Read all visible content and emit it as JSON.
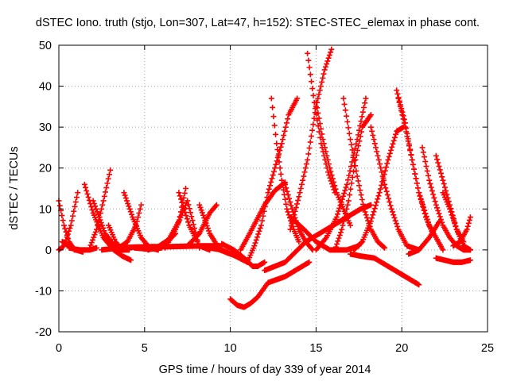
{
  "chart_data": {
    "type": "scatter",
    "title": "dSTEC Iono. truth (stjo, Lon=307, Lat=47, h=152): STEC-STEC_elemax in phase cont.",
    "xlabel": "GPS time / hours of day 339 of year 2014",
    "ylabel": "dSTEC  / TECUs",
    "xlim": [
      0,
      25
    ],
    "ylim": [
      -20,
      50
    ],
    "xticks": [
      "0",
      "5",
      "10",
      "15",
      "20",
      "25"
    ],
    "yticks": [
      "-20",
      "-10",
      "0",
      "10",
      "20",
      "30",
      "40",
      "50"
    ],
    "grid": true,
    "marker": "+",
    "color": "#ff0000",
    "series": [
      {
        "x": [
          0.0,
          0.3,
          0.6,
          0.9,
          1.2
        ],
        "y": [
          12,
          6,
          2,
          0,
          0
        ]
      },
      {
        "x": [
          0.0,
          0.3,
          0.7,
          1.1
        ],
        "y": [
          0,
          1,
          6,
          14
        ]
      },
      {
        "x": [
          0.2,
          0.6,
          1.0,
          1.4
        ],
        "y": [
          2,
          1,
          0,
          -0.5
        ]
      },
      {
        "x": [
          0.6,
          1.2,
          1.8,
          2.2
        ],
        "y": [
          0.5,
          0,
          0,
          0.5
        ]
      },
      {
        "x": [
          1.5,
          2.0,
          2.6,
          3.2,
          3.7,
          4.2
        ],
        "y": [
          16,
          9,
          3,
          0,
          -1.5,
          -2.5
        ]
      },
      {
        "x": [
          1.8,
          2.2,
          2.6,
          3.0
        ],
        "y": [
          0.5,
          5,
          12,
          19.5
        ]
      },
      {
        "x": [
          2.0,
          2.7,
          3.4,
          3.8
        ],
        "y": [
          12,
          4,
          0,
          0
        ]
      },
      {
        "x": [
          2.5,
          3.5,
          4.5,
          5.5,
          6.5,
          7.5,
          8.5,
          9.5
        ],
        "y": [
          0,
          0.5,
          0.7,
          0.8,
          0.8,
          0.9,
          1.0,
          1.0
        ]
      },
      {
        "x": [
          2.9,
          3.3,
          3.7,
          4.1
        ],
        "y": [
          6,
          2,
          0,
          0
        ]
      },
      {
        "x": [
          3.8,
          4.3,
          4.8,
          5.3,
          5.8
        ],
        "y": [
          14,
          8,
          3,
          0.5,
          0
        ]
      },
      {
        "x": [
          3.5,
          4.0,
          4.5,
          4.8
        ],
        "y": [
          0.5,
          2,
          6,
          11
        ]
      },
      {
        "x": [
          4.4,
          5.2,
          6.0,
          6.8
        ],
        "y": [
          0.5,
          0.2,
          0.5,
          4
        ]
      },
      {
        "x": [
          5.2,
          5.8,
          6.4,
          7.0,
          7.4
        ],
        "y": [
          0,
          0.8,
          2.5,
          7,
          15
        ]
      },
      {
        "x": [
          6.2,
          6.8,
          7.5,
          8.2
        ],
        "y": [
          0.5,
          5,
          12,
          0.5
        ]
      },
      {
        "x": [
          7.0,
          7.6,
          8.2,
          8.8
        ],
        "y": [
          14,
          6,
          1,
          0
        ]
      },
      {
        "x": [
          7.5,
          8.2,
          8.8,
          9.2
        ],
        "y": [
          1,
          4,
          9,
          11
        ]
      },
      {
        "x": [
          8.2,
          8.8,
          9.4,
          10.0,
          10.6
        ],
        "y": [
          11,
          4,
          0,
          -1,
          -1.5
        ]
      },
      {
        "x": [
          8.8,
          9.5,
          10.3,
          11.0
        ],
        "y": [
          0.5,
          0,
          -1.5,
          -3
        ]
      },
      {
        "x": [
          9.5,
          10.2,
          10.8,
          11.3,
          11.6,
          12.0
        ],
        "y": [
          1.5,
          0,
          -2,
          -4,
          -4,
          -3
        ]
      },
      {
        "x": [
          10.0,
          10.4,
          10.8,
          11.2,
          11.6,
          12.2,
          13.2,
          14.2,
          14.6
        ],
        "y": [
          -12,
          -13.5,
          -14,
          -13,
          -11.5,
          -8,
          -6.5,
          -4,
          -3
        ]
      },
      {
        "x": [
          11.0,
          11.4,
          11.8,
          12.2,
          12.6,
          13.0,
          13.4,
          13.9
        ],
        "y": [
          -3,
          1,
          6,
          14,
          20,
          26,
          33,
          37
        ]
      },
      {
        "x": [
          10.6,
          11.0,
          11.5,
          12.0,
          12.6,
          13.2
        ],
        "y": [
          0,
          3,
          7,
          11,
          14.5,
          16.5
        ]
      },
      {
        "x": [
          12.0,
          13.2,
          14.4,
          15.6,
          16.8,
          17.6,
          18.2
        ],
        "y": [
          -5,
          -3,
          2,
          5,
          8,
          10,
          11
        ]
      },
      {
        "x": [
          12.4,
          12.7,
          13.0,
          13.3,
          13.7,
          14.0
        ],
        "y": [
          37,
          26,
          17,
          10,
          5,
          2
        ]
      },
      {
        "x": [
          13.2,
          13.6,
          14.0,
          14.4,
          14.8
        ],
        "y": [
          16,
          10,
          5,
          2,
          0
        ]
      },
      {
        "x": [
          13.5,
          14.0,
          14.5,
          15.0,
          15.5,
          15.9
        ],
        "y": [
          5,
          13,
          22,
          35,
          44,
          49
        ]
      },
      {
        "x": [
          13.5,
          14.3,
          15.0,
          15.8,
          16.8,
          17.5
        ],
        "y": [
          8,
          5,
          2,
          0,
          0,
          1
        ]
      },
      {
        "x": [
          14.5,
          14.9,
          15.3,
          15.7,
          16.1
        ],
        "y": [
          48,
          36,
          26,
          19,
          14
        ]
      },
      {
        "x": [
          15.0,
          15.4,
          15.8,
          16.2,
          16.6,
          17.0
        ],
        "y": [
          36,
          27,
          20,
          14,
          10,
          6
        ]
      },
      {
        "x": [
          15.0,
          15.6,
          16.2,
          16.8,
          17.4,
          17.9
        ],
        "y": [
          0,
          3,
          8,
          16,
          27,
          37
        ]
      },
      {
        "x": [
          16.1,
          16.5,
          16.9,
          17.3,
          17.7,
          18.2
        ],
        "y": [
          0,
          5,
          12,
          22,
          30,
          33
        ]
      },
      {
        "x": [
          16.6,
          17.0,
          17.4,
          17.8,
          18.2,
          18.6,
          19.0
        ],
        "y": [
          37,
          27,
          18,
          10,
          5,
          2,
          0.5
        ]
      },
      {
        "x": [
          17.2,
          17.7,
          18.2,
          18.7,
          19.2,
          19.7,
          20.1
        ],
        "y": [
          0,
          2,
          7,
          14,
          22,
          29,
          30
        ]
      },
      {
        "x": [
          18.2,
          18.6,
          19.0,
          19.4,
          19.8,
          20.3,
          21.0
        ],
        "y": [
          30,
          23,
          16,
          10,
          5,
          1,
          0
        ]
      },
      {
        "x": [
          17.0,
          17.6,
          18.4,
          19.2,
          20.0,
          20.6,
          21.0
        ],
        "y": [
          -1,
          -1.5,
          -2,
          -4,
          -6,
          -7.5,
          -8.5
        ]
      },
      {
        "x": [
          19.8,
          20.2,
          20.6,
          21.0,
          21.4,
          21.8
        ],
        "y": [
          37,
          30,
          22,
          14,
          8,
          4
        ]
      },
      {
        "x": [
          19.7,
          20.2,
          20.6,
          21.0,
          21.6,
          22.4
        ],
        "y": [
          39,
          31,
          22,
          14,
          6,
          0
        ]
      },
      {
        "x": [
          20.4,
          21.0,
          21.6,
          22.2
        ],
        "y": [
          -1,
          0,
          3,
          7
        ]
      },
      {
        "x": [
          21.2,
          21.6,
          22.0,
          22.4,
          22.8,
          23.2,
          23.6,
          24.0
        ],
        "y": [
          25,
          17,
          11,
          6,
          3,
          1,
          0,
          0
        ]
      },
      {
        "x": [
          22.0,
          22.4,
          22.8,
          23.2,
          23.6
        ],
        "y": [
          23,
          17,
          11,
          5,
          2
        ]
      },
      {
        "x": [
          22.4,
          22.8,
          23.2,
          23.6,
          24.0
        ],
        "y": [
          14,
          10,
          5,
          1,
          0
        ]
      },
      {
        "x": [
          23.0,
          23.4,
          23.8,
          24.0
        ],
        "y": [
          1,
          2,
          5,
          8
        ]
      },
      {
        "x": [
          22.0,
          22.5,
          23.0,
          23.5,
          24.0
        ],
        "y": [
          -2,
          -2.5,
          -3,
          -3,
          -2.5
        ]
      }
    ]
  }
}
